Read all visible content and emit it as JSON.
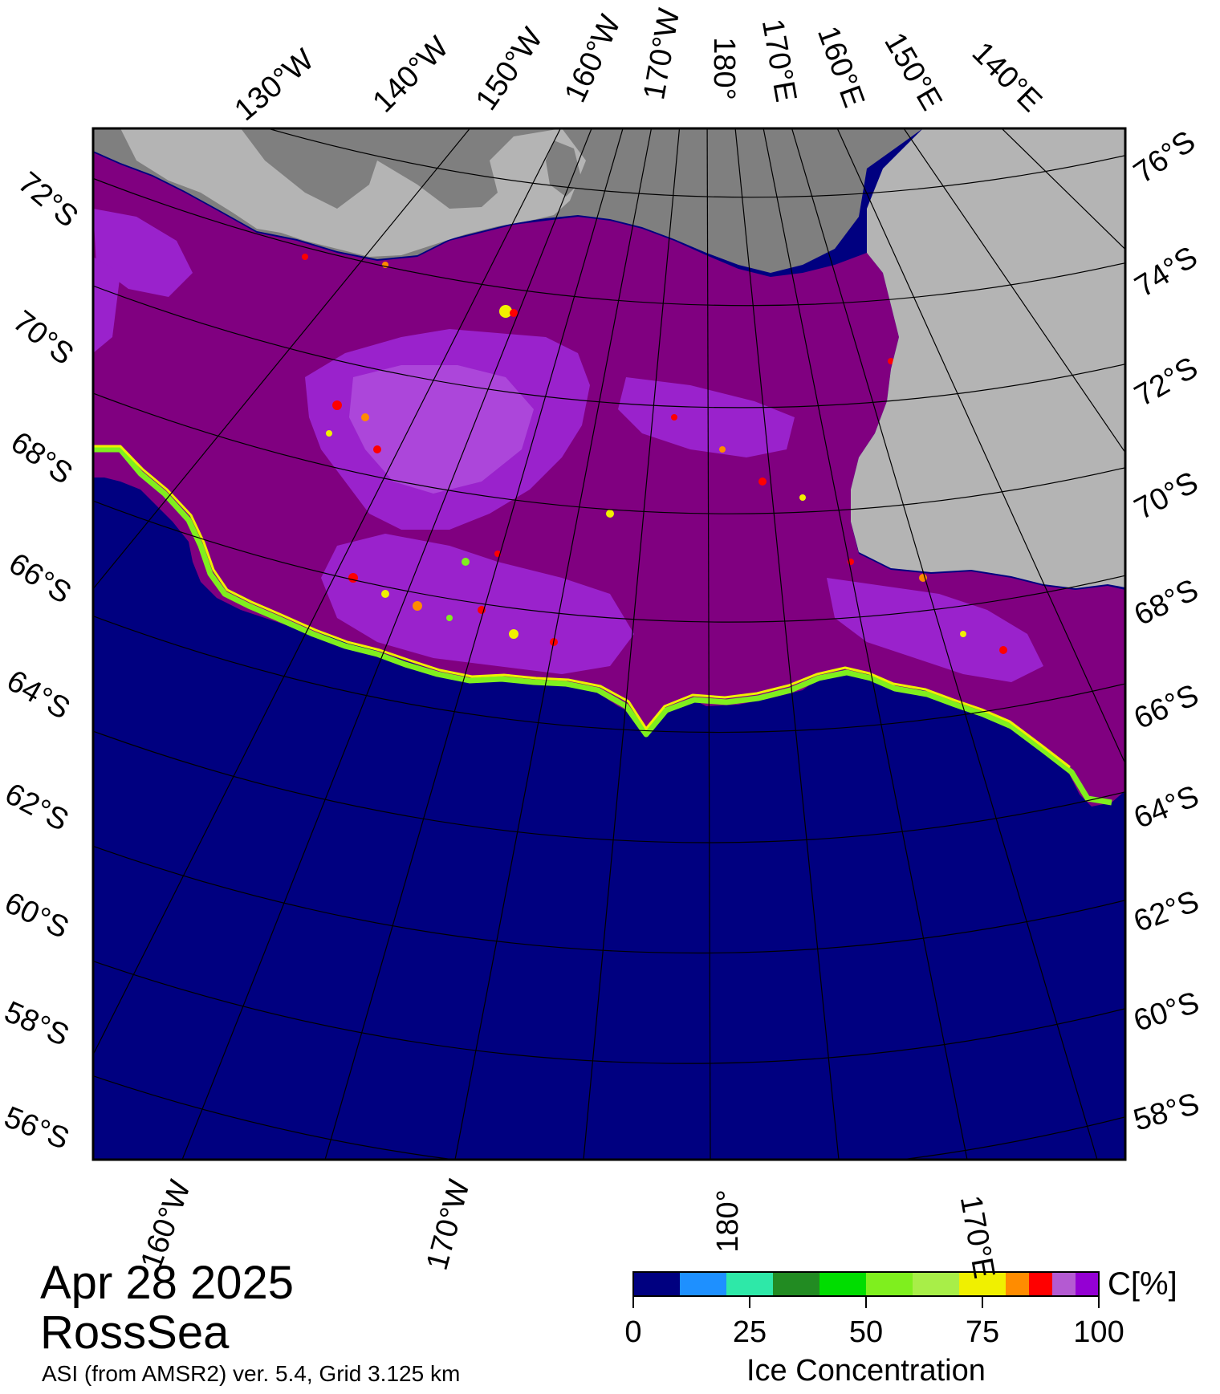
{
  "map": {
    "date": "Apr 28 2025",
    "region": "RossSea",
    "source": "ASI (from AMSR2) ver. 5.4,  Grid 3.125 km",
    "colors": {
      "ocean": "#000080",
      "ice_high": "#800080",
      "ice_mid": "#9a22cc",
      "ice_light": "#b050dd",
      "land": "#b4b4b4",
      "ice_shelf": "#7f7f7f"
    },
    "top_longitude_labels": [
      "130°W",
      "140°W",
      "150°W",
      "160°W",
      "170°W",
      "180°",
      "170°E",
      "160°E",
      "150°E",
      "140°E"
    ],
    "bottom_longitude_labels": [
      "160°W",
      "170°W",
      "180°",
      "170°E"
    ],
    "left_latitude_labels": [
      "72°S",
      "70°S",
      "68°S",
      "66°S",
      "64°S",
      "62°S",
      "60°S",
      "58°S",
      "56°S"
    ],
    "right_latitude_labels": [
      "76°S",
      "74°S",
      "72°S",
      "70°S",
      "68°S",
      "66°S",
      "64°S",
      "62°S",
      "60°S",
      "58°S"
    ]
  },
  "colorbar": {
    "unit": "C[%]",
    "title": "Ice Concentration",
    "tick_labels": [
      "0",
      "25",
      "50",
      "75",
      "100"
    ],
    "bins": [
      {
        "from": 0,
        "to": 10,
        "color": "#000080"
      },
      {
        "from": 10,
        "to": 20,
        "color": "#1e90ff"
      },
      {
        "from": 20,
        "to": 30,
        "color": "#2ee8a8"
      },
      {
        "from": 30,
        "to": 40,
        "color": "#228b22"
      },
      {
        "from": 40,
        "to": 50,
        "color": "#00dd00"
      },
      {
        "from": 50,
        "to": 60,
        "color": "#7fef1e"
      },
      {
        "from": 60,
        "to": 70,
        "color": "#a8ee48"
      },
      {
        "from": 70,
        "to": 75,
        "color": "#f0f000"
      },
      {
        "from": 75,
        "to": 80,
        "color": "#f0f000"
      },
      {
        "from": 80,
        "to": 85,
        "color": "#ff8c00"
      },
      {
        "from": 85,
        "to": 90,
        "color": "#ff0000"
      },
      {
        "from": 90,
        "to": 95,
        "color": "#b45ad2"
      },
      {
        "from": 95,
        "to": 100,
        "color": "#9400d3"
      }
    ]
  }
}
